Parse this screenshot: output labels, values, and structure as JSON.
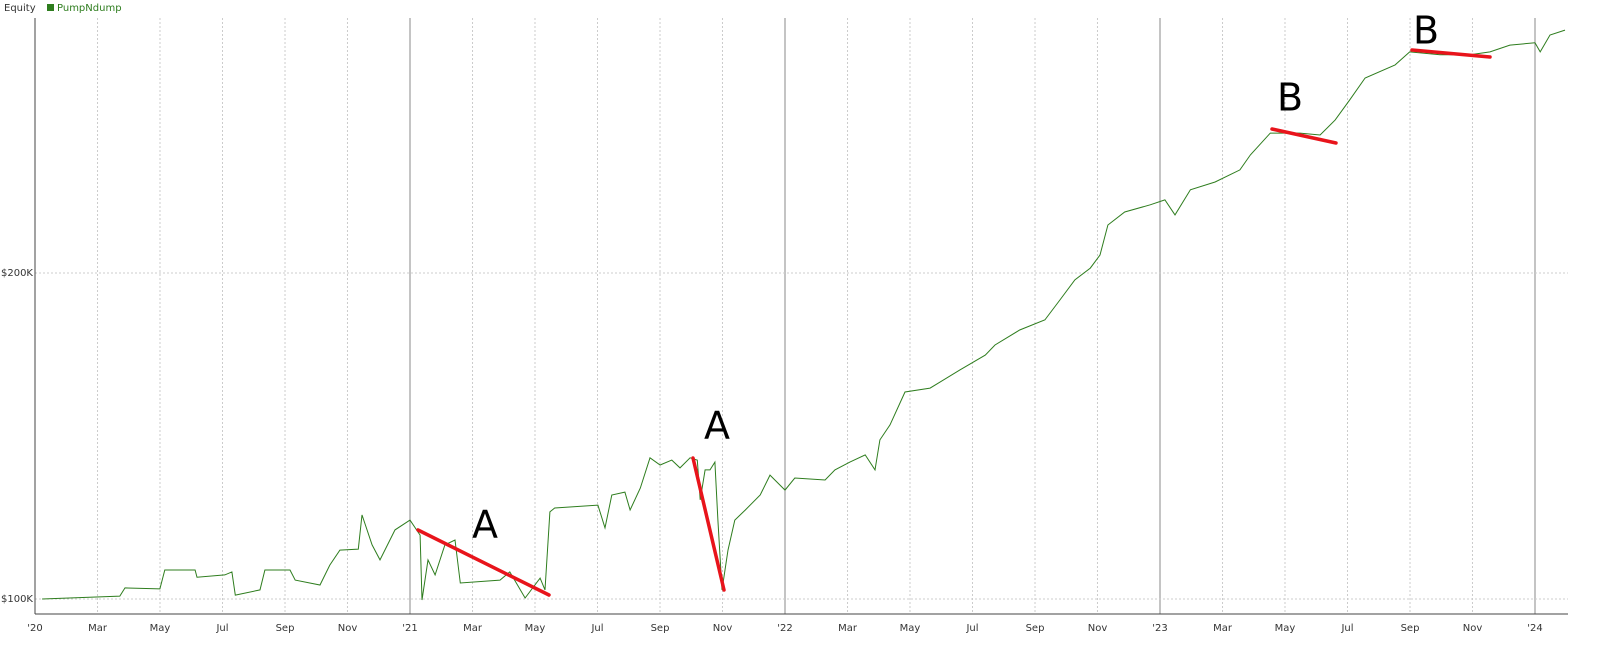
{
  "chart_data": {
    "type": "line",
    "legend_title": "Equity",
    "series": [
      {
        "name": "PumpNdump",
        "color": "#2e7d1e",
        "x": [
          2020.019,
          2020.226,
          2020.24,
          2020.333,
          2020.346,
          2020.427,
          2020.432,
          2020.506,
          2020.525,
          2020.534,
          2020.6,
          2020.613,
          2020.68,
          2020.694,
          2020.76,
          2020.786,
          2020.813,
          2020.862,
          2020.872,
          2020.899,
          2020.92,
          2020.96,
          2021.0,
          2021.027,
          2021.032,
          2021.048,
          2021.067,
          2021.093,
          2021.12,
          2021.134,
          2021.24,
          2021.266,
          2021.307,
          2021.347,
          2021.36,
          2021.373,
          2021.386,
          2021.501,
          2021.52,
          2021.538,
          2021.573,
          2021.587,
          2021.614,
          2021.64,
          2021.667,
          2021.698,
          2021.72,
          2021.747,
          2021.766,
          2021.774,
          2021.787,
          2021.8,
          2021.813,
          2021.821,
          2021.832,
          2021.848,
          2021.866,
          2021.894,
          2021.934,
          2021.96,
          2022.0,
          2022.026,
          2022.107,
          2022.133,
          2022.173,
          2022.214,
          2022.24,
          2022.253,
          2022.28,
          2022.32,
          2022.387,
          2022.466,
          2022.534,
          2022.56,
          2022.626,
          2022.693,
          2022.733,
          2022.773,
          2022.814,
          2022.84,
          2022.861,
          2022.906,
          2022.974,
          2023.013,
          2023.04,
          2023.081,
          2023.147,
          2023.213,
          2023.241,
          2023.294,
          2023.373,
          2023.427,
          2023.467,
          2023.506,
          2023.547,
          2023.627,
          2023.666,
          2023.747,
          2023.827,
          2023.88,
          2023.933,
          2024.0,
          2024.014,
          2024.04,
          2024.08
        ],
        "values": [
          100000,
          100900,
          103400,
          103100,
          108900,
          108900,
          106700,
          107400,
          108300,
          101200,
          102800,
          108900,
          108900,
          105800,
          104300,
          110400,
          115000,
          115300,
          125800,
          116600,
          112000,
          121200,
          124200,
          119600,
          99700,
          112000,
          107400,
          116600,
          118100,
          104900,
          105800,
          108300,
          100300,
          106400,
          102800,
          126700,
          127900,
          128800,
          121800,
          131900,
          132800,
          127300,
          134000,
          143300,
          141100,
          142600,
          140200,
          143300,
          142600,
          130400,
          139600,
          139600,
          142000,
          124200,
          102800,
          115000,
          124200,
          127300,
          131900,
          138000,
          133400,
          137100,
          136500,
          139600,
          142000,
          144200,
          139600,
          148800,
          153400,
          163500,
          164700,
          170200,
          174800,
          177900,
          182500,
          185600,
          191700,
          197900,
          201500,
          205500,
          214700,
          218700,
          220900,
          222400,
          217800,
          225500,
          227900,
          231600,
          236200,
          242900,
          242900,
          242300,
          246900,
          253100,
          259800,
          263800,
          267800,
          266900,
          266900,
          267800,
          269900,
          270600,
          267800,
          273000,
          274500
        ]
      }
    ],
    "xlim": [
      2020,
      2024.088
    ],
    "xticks": [
      {
        "value": 2020,
        "label": "'20"
      },
      {
        "value": 2020.1667,
        "label": "Mar"
      },
      {
        "value": 2020.3333,
        "label": "May"
      },
      {
        "value": 2020.5,
        "label": "Jul"
      },
      {
        "value": 2020.6667,
        "label": "Sep"
      },
      {
        "value": 2020.8333,
        "label": "Nov"
      },
      {
        "value": 2021,
        "label": "'21"
      },
      {
        "value": 2021.1667,
        "label": "Mar"
      },
      {
        "value": 2021.3333,
        "label": "May"
      },
      {
        "value": 2021.5,
        "label": "Jul"
      },
      {
        "value": 2021.6667,
        "label": "Sep"
      },
      {
        "value": 2021.8333,
        "label": "Nov"
      },
      {
        "value": 2022,
        "label": "'22"
      },
      {
        "value": 2022.1667,
        "label": "Mar"
      },
      {
        "value": 2022.3333,
        "label": "May"
      },
      {
        "value": 2022.5,
        "label": "Jul"
      },
      {
        "value": 2022.6667,
        "label": "Sep"
      },
      {
        "value": 2022.8333,
        "label": "Nov"
      },
      {
        "value": 2023,
        "label": "'23"
      },
      {
        "value": 2023.1667,
        "label": "Mar"
      },
      {
        "value": 2023.3333,
        "label": "May"
      },
      {
        "value": 2023.5,
        "label": "Jul"
      },
      {
        "value": 2023.6667,
        "label": "Sep"
      },
      {
        "value": 2023.8333,
        "label": "Nov"
      },
      {
        "value": 2024,
        "label": "'24"
      }
    ],
    "ylim": [
      95400,
      278200
    ],
    "yticks": [
      {
        "value": 100000,
        "label": "$100K"
      },
      {
        "value": 200000,
        "label": "$200K"
      }
    ],
    "grid": true,
    "annotations": [
      "A",
      "A",
      "B",
      "B"
    ],
    "annotation_color": "#e8141b"
  }
}
